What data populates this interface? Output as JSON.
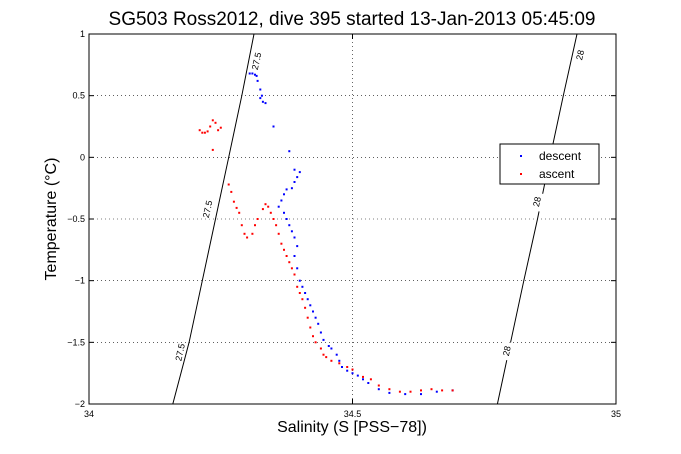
{
  "chart_data": {
    "type": "scatter",
    "title": "SG503 Ross2012, dive 395 started 13-Jan-2013 05:45:09",
    "xlabel": "Salinity (S [PSS−78])",
    "ylabel": "Temperature (°C)",
    "xlim": [
      34,
      35
    ],
    "ylim": [
      -2,
      1
    ],
    "xticks": [
      {
        "value": 34,
        "label": "34"
      },
      {
        "value": 34.5,
        "label": "34.5"
      },
      {
        "value": 35,
        "label": "35"
      }
    ],
    "yticks": [
      {
        "value": 1,
        "label": "1"
      },
      {
        "value": 0.5,
        "label": "0.5"
      },
      {
        "value": 0,
        "label": "0"
      },
      {
        "value": -0.5,
        "label": "−0.5"
      },
      {
        "value": -1,
        "label": "−1"
      },
      {
        "value": -1.5,
        "label": "−1.5"
      },
      {
        "value": -2,
        "label": "−2"
      }
    ],
    "grid": true,
    "legend_position": "right",
    "contours": [
      {
        "label": "27.5",
        "points": [
          [
            34.159,
            -2
          ],
          [
            34.19,
            -1.5
          ],
          [
            34.215,
            -1
          ],
          [
            34.24,
            -0.5
          ],
          [
            34.265,
            0
          ],
          [
            34.29,
            0.5
          ],
          [
            34.313,
            1
          ]
        ],
        "label_positions": [
          [
            34.318,
            0.78
          ],
          [
            34.225,
            -0.42
          ],
          [
            34.173,
            -1.58
          ]
        ]
      },
      {
        "label": "28",
        "points": [
          [
            34.775,
            -2
          ],
          [
            34.8,
            -1.5
          ],
          [
            34.825,
            -1
          ],
          [
            34.851,
            -0.5
          ],
          [
            34.875,
            0
          ],
          [
            34.9,
            0.5
          ],
          [
            34.926,
            1
          ]
        ],
        "label_positions": [
          [
            34.932,
            0.83
          ],
          [
            34.85,
            -0.36
          ],
          [
            34.793,
            -1.57
          ]
        ]
      }
    ],
    "series": [
      {
        "name": "descent",
        "color": "#0000ff",
        "points": [
          [
            34.305,
            0.68
          ],
          [
            34.31,
            0.68
          ],
          [
            34.315,
            0.67
          ],
          [
            34.318,
            0.66
          ],
          [
            34.32,
            0.62
          ],
          [
            34.325,
            0.55
          ],
          [
            34.328,
            0.5
          ],
          [
            34.33,
            0.45
          ],
          [
            34.325,
            0.48
          ],
          [
            34.335,
            0.44
          ],
          [
            34.35,
            0.25
          ],
          [
            34.38,
            0.05
          ],
          [
            34.39,
            -0.1
          ],
          [
            34.4,
            -0.12
          ],
          [
            34.395,
            -0.16
          ],
          [
            34.39,
            -0.2
          ],
          [
            34.385,
            -0.25
          ],
          [
            34.375,
            -0.26
          ],
          [
            34.37,
            -0.3
          ],
          [
            34.365,
            -0.35
          ],
          [
            34.36,
            -0.4
          ],
          [
            34.37,
            -0.45
          ],
          [
            34.375,
            -0.5
          ],
          [
            34.38,
            -0.55
          ],
          [
            34.385,
            -0.6
          ],
          [
            34.39,
            -0.65
          ],
          [
            34.395,
            -0.72
          ],
          [
            34.39,
            -0.8
          ],
          [
            34.395,
            -0.9
          ],
          [
            34.4,
            -1.0
          ],
          [
            34.405,
            -1.05
          ],
          [
            34.41,
            -1.1
          ],
          [
            34.415,
            -1.15
          ],
          [
            34.42,
            -1.2
          ],
          [
            34.425,
            -1.25
          ],
          [
            34.43,
            -1.3
          ],
          [
            34.435,
            -1.35
          ],
          [
            34.44,
            -1.42
          ],
          [
            34.445,
            -1.48
          ],
          [
            34.455,
            -1.53
          ],
          [
            34.46,
            -1.55
          ],
          [
            34.47,
            -1.6
          ],
          [
            34.475,
            -1.65
          ],
          [
            34.48,
            -1.7
          ],
          [
            34.49,
            -1.73
          ],
          [
            34.5,
            -1.75
          ],
          [
            34.51,
            -1.77
          ],
          [
            34.52,
            -1.8
          ],
          [
            34.53,
            -1.83
          ],
          [
            34.55,
            -1.88
          ],
          [
            34.57,
            -1.91
          ],
          [
            34.6,
            -1.92
          ],
          [
            34.63,
            -1.92
          ],
          [
            34.66,
            -1.9
          ],
          [
            34.69,
            -1.89
          ]
        ]
      },
      {
        "name": "ascent",
        "color": "#ff0000",
        "points": [
          [
            34.21,
            0.22
          ],
          [
            34.215,
            0.2
          ],
          [
            34.22,
            0.2
          ],
          [
            34.225,
            0.21
          ],
          [
            34.23,
            0.25
          ],
          [
            34.235,
            0.3
          ],
          [
            34.24,
            0.28
          ],
          [
            34.245,
            0.22
          ],
          [
            34.25,
            0.24
          ],
          [
            34.235,
            0.06
          ],
          [
            34.265,
            -0.22
          ],
          [
            34.27,
            -0.28
          ],
          [
            34.275,
            -0.36
          ],
          [
            34.28,
            -0.41
          ],
          [
            34.285,
            -0.45
          ],
          [
            34.29,
            -0.55
          ],
          [
            34.295,
            -0.62
          ],
          [
            34.3,
            -0.65
          ],
          [
            34.31,
            -0.62
          ],
          [
            34.315,
            -0.55
          ],
          [
            34.32,
            -0.5
          ],
          [
            34.33,
            -0.42
          ],
          [
            34.335,
            -0.38
          ],
          [
            34.34,
            -0.4
          ],
          [
            34.345,
            -0.45
          ],
          [
            34.35,
            -0.5
          ],
          [
            34.355,
            -0.55
          ],
          [
            34.36,
            -0.62
          ],
          [
            34.365,
            -0.7
          ],
          [
            34.37,
            -0.75
          ],
          [
            34.375,
            -0.8
          ],
          [
            34.38,
            -0.85
          ],
          [
            34.385,
            -0.9
          ],
          [
            34.39,
            -0.95
          ],
          [
            34.395,
            -1.05
          ],
          [
            34.4,
            -1.1
          ],
          [
            34.405,
            -1.15
          ],
          [
            34.41,
            -1.22
          ],
          [
            34.415,
            -1.3
          ],
          [
            34.42,
            -1.38
          ],
          [
            34.425,
            -1.45
          ],
          [
            34.43,
            -1.5
          ],
          [
            34.44,
            -1.55
          ],
          [
            34.445,
            -1.6
          ],
          [
            34.45,
            -1.62
          ],
          [
            34.46,
            -1.65
          ],
          [
            34.475,
            -1.67
          ],
          [
            34.49,
            -1.7
          ],
          [
            34.5,
            -1.72
          ],
          [
            34.52,
            -1.78
          ],
          [
            34.535,
            -1.8
          ],
          [
            34.55,
            -1.85
          ],
          [
            34.57,
            -1.88
          ],
          [
            34.59,
            -1.9
          ],
          [
            34.61,
            -1.9
          ],
          [
            34.63,
            -1.89
          ],
          [
            34.65,
            -1.88
          ],
          [
            34.67,
            -1.89
          ],
          [
            34.69,
            -1.89
          ]
        ]
      }
    ]
  }
}
